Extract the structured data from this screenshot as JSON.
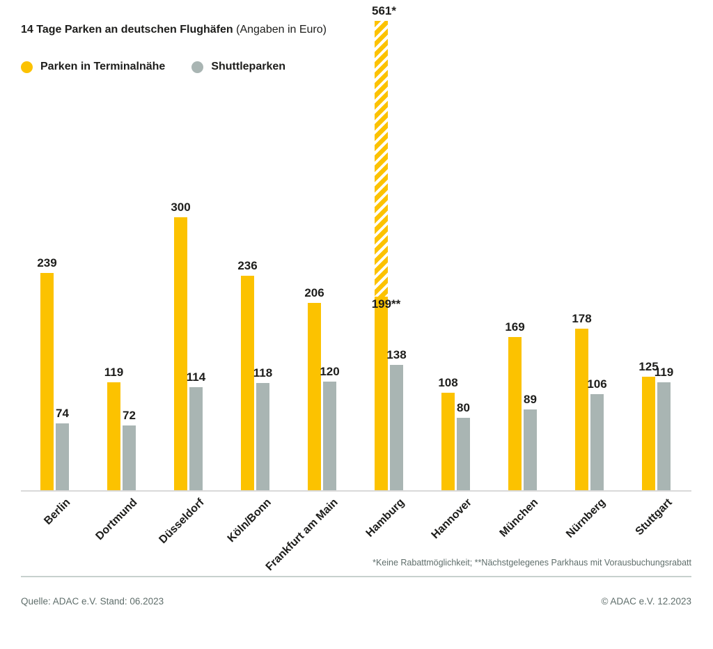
{
  "title": {
    "main": "14 Tage Parken an deutschen Flughäfen",
    "suffix": "(Angaben in Euro)"
  },
  "legend": [
    {
      "label": "Parken in Terminalnähe",
      "color": "#FCC200"
    },
    {
      "label": "Shuttleparken",
      "color": "#A9B5B3"
    }
  ],
  "chart_data": {
    "type": "bar",
    "title": "14 Tage Parken an deutschen Flughäfen (Angaben in Euro)",
    "unit": "Euro",
    "categories": [
      "Berlin",
      "Dortmund",
      "Düsseldorf",
      "Köln/Bonn",
      "Frankfurt am Main",
      "Hamburg",
      "Hannover",
      "München",
      "Nürnberg",
      "Stuttgart"
    ],
    "series": [
      {
        "name": "Parken in Terminalnähe",
        "color": "#FCC200",
        "values": [
          239,
          119,
          300,
          236,
          206,
          561,
          108,
          169,
          178,
          125
        ],
        "labels": [
          "239",
          "119",
          "300",
          "236",
          "206",
          "561*",
          "108",
          "169",
          "178",
          "125"
        ]
      },
      {
        "name": "Shuttleparken",
        "color": "#A9B5B3",
        "values": [
          74,
          72,
          114,
          118,
          120,
          138,
          80,
          89,
          106,
          119
        ],
        "labels": [
          "74",
          "72",
          "114",
          "118",
          "120",
          "138",
          "80",
          "89",
          "106",
          "119"
        ]
      }
    ],
    "special": {
      "category": "Hamburg",
      "index": 5,
      "clipped_value": 561,
      "clipped_label": "561*",
      "solid_value": 199,
      "solid_label": "199**",
      "note": "Balken oben schraffiert/abgeschnitten; 561 ohne Rabatt, 199 Vorausbuchungsrabatt"
    },
    "ylim": [
      0,
      561
    ],
    "grid": false,
    "legend_position": "top-left"
  },
  "footnote": "*Keine Rabattmöglichkeit; **Nächstgelegenes Parkhaus mit Vorausbuchungsrabatt",
  "source": "Quelle: ADAC e.V. Stand: 06.2023",
  "copyright": "© ADAC e.V. 12.2023"
}
